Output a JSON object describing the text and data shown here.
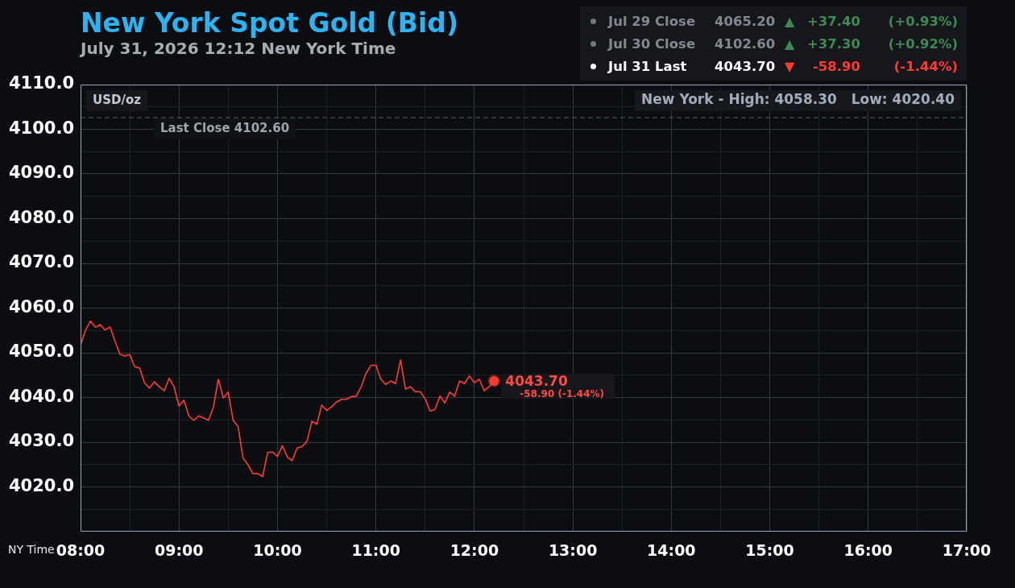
{
  "chart_data": {
    "type": "line",
    "title": "New York Spot Gold (Bid)",
    "subtitle": "July 31, 2026 12:12 New York Time",
    "xlabel": "NY Time",
    "ylabel": "USD/oz",
    "x": [
      8,
      8.05,
      8.1,
      8.15,
      8.2,
      8.25,
      8.3,
      8.35,
      8.4,
      8.45,
      8.5,
      8.55,
      8.6,
      8.65,
      8.7,
      8.75,
      8.8,
      8.85,
      8.9,
      8.95,
      9,
      9.05,
      9.1,
      9.15,
      9.2,
      9.25,
      9.3,
      9.35,
      9.4,
      9.45,
      9.5,
      9.55,
      9.6,
      9.65,
      9.7,
      9.75,
      9.8,
      9.85,
      9.9,
      9.95,
      10,
      10.05,
      10.1,
      10.15,
      10.2,
      10.25,
      10.3,
      10.35,
      10.4,
      10.45,
      10.5,
      10.55,
      10.6,
      10.65,
      10.7,
      10.75,
      10.8,
      10.85,
      10.9,
      10.95,
      11,
      11.05,
      11.1,
      11.15,
      11.2,
      11.25,
      11.3,
      11.35,
      11.4,
      11.45,
      11.5,
      11.55,
      11.6,
      11.65,
      11.7,
      11.75,
      11.8,
      11.85,
      11.9,
      11.95,
      12,
      12.05,
      12.1,
      12.15,
      12.2
    ],
    "series": [
      {
        "color": "#ff3b30",
        "values": [
          4051.7,
          4055.0,
          4057.1,
          4055.7,
          4056.3,
          4055.1,
          4055.8,
          4052.6,
          4049.7,
          4049.3,
          4049.6,
          4046.9,
          4046.6,
          4043.3,
          4042.1,
          4043.5,
          4042.4,
          4041.5,
          4044.3,
          4042.4,
          4038.1,
          4039.4,
          4035.9,
          4034.9,
          4035.9,
          4035.4,
          4034.9,
          4037.9,
          4044.1,
          4039.9,
          4041.2,
          4034.9,
          4033.5,
          4026.5,
          4025.0,
          4023.0,
          4023.0,
          4022.3,
          4027.7,
          4027.8,
          4026.8,
          4029.2,
          4026.7,
          4025.9,
          4028.7,
          4029.0,
          4030.2,
          4034.7,
          4034.0,
          4038.3,
          4037.1,
          4037.9,
          4039.0,
          4039.6,
          4039.6,
          4040.2,
          4040.3,
          4042.4,
          4045.4,
          4047.2,
          4047.2,
          4044.1,
          4042.9,
          4043.7,
          4043.1,
          4048.4,
          4041.9,
          4042.4,
          4041.3,
          4041.3,
          4039.7,
          4037.0,
          4037.3,
          4040.3,
          4038.8,
          4041.2,
          4040.3,
          4043.7,
          4043.1,
          4044.8,
          4043.3,
          4044.1,
          4041.5,
          4042.4,
          4043.7
        ]
      },
      {
        "type": "scatter",
        "marker": "circle",
        "color": "#ff3b30",
        "x": [
          12.2
        ],
        "values": [
          4043.7
        ]
      }
    ],
    "marker": "none",
    "xlim": [
      8,
      17
    ],
    "xticks": [
      {
        "value": 8,
        "label": "08:00"
      },
      {
        "value": 8.5,
        "label": null
      },
      {
        "value": 9,
        "label": "09:00"
      },
      {
        "value": 9.5,
        "label": null
      },
      {
        "value": 10,
        "label": "10:00"
      },
      {
        "value": 10.5,
        "label": null
      },
      {
        "value": 11,
        "label": "11:00"
      },
      {
        "value": 11.5,
        "label": null
      },
      {
        "value": 12,
        "label": "12:00"
      },
      {
        "value": 12.5,
        "label": null
      },
      {
        "value": 13,
        "label": "13:00"
      },
      {
        "value": 13.5,
        "label": null
      },
      {
        "value": 14,
        "label": "14:00"
      },
      {
        "value": 14.5,
        "label": null
      },
      {
        "value": 15,
        "label": "15:00"
      },
      {
        "value": 15.5,
        "label": null
      },
      {
        "value": 16,
        "label": "16:00"
      },
      {
        "value": 16.5,
        "label": null
      },
      {
        "value": 17,
        "label": "17:00"
      }
    ],
    "ylim": [
      4010,
      4110
    ],
    "yticks": [
      {
        "value": 4015,
        "label": null
      },
      {
        "value": 4020,
        "label": "4020.0"
      },
      {
        "value": 4025,
        "label": null
      },
      {
        "value": 4030,
        "label": "4030.0"
      },
      {
        "value": 4035,
        "label": null
      },
      {
        "value": 4040,
        "label": "4040.0"
      },
      {
        "value": 4045,
        "label": null
      },
      {
        "value": 4050,
        "label": "4050.0"
      },
      {
        "value": 4055,
        "label": null
      },
      {
        "value": 4060,
        "label": "4060.0"
      },
      {
        "value": 4065,
        "label": null
      },
      {
        "value": 4070,
        "label": "4070.0"
      },
      {
        "value": 4075,
        "label": null
      },
      {
        "value": 4080,
        "label": "4080.0"
      },
      {
        "value": 4085,
        "label": null
      },
      {
        "value": 4090,
        "label": "4090.0"
      },
      {
        "value": 4095,
        "label": null
      },
      {
        "value": 4100,
        "label": "4100.0"
      },
      {
        "value": 4105,
        "label": null
      },
      {
        "value": 4110,
        "label": "4110.0"
      }
    ],
    "grid": true,
    "ref_lines": [
      {
        "axis": "y",
        "value": 4102.6,
        "label": "Last Close 4102.60",
        "color": "#5a5e66",
        "line_style": "dashed"
      }
    ],
    "annotations": [
      "New York - High: 4058.30   Low: 4020.40",
      {
        "text": "4043.70",
        "x": 12.2,
        "y": 4043.7
      },
      {
        "text": "-58.90 (-1.44%)",
        "x": 12.2,
        "y": 4043.7
      },
      "Jul 29 Close",
      "4065.20",
      "▲",
      "+37.40",
      "(+0.93%)",
      "Jul 30 Close",
      "4102.60",
      "▲",
      "+37.30",
      "(+0.92%)",
      "Jul 31 Last",
      "4043.70",
      "▼",
      "-58.90",
      "(-1.44%)"
    ]
  }
}
